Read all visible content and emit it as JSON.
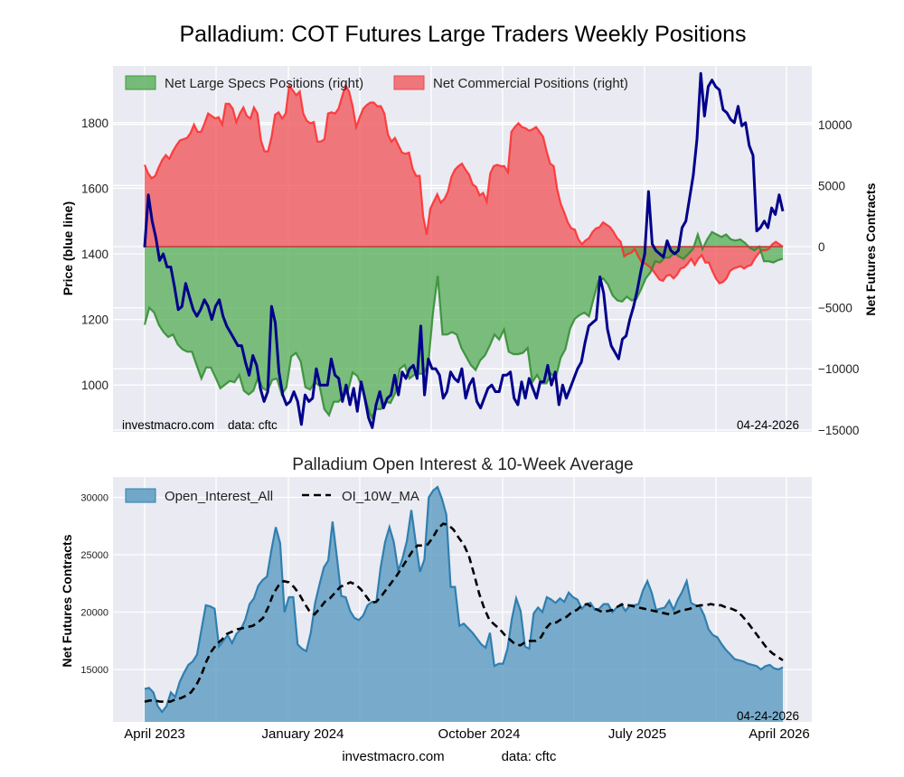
{
  "chart_data": [
    {
      "type": "area",
      "title": "Palladium: COT Futures Large Traders Weekly Positions",
      "ylabel_left": "Price (blue line)",
      "ylabel_right": "Net Futures Contracts",
      "ylim_left": [
        870,
        1970
      ],
      "ylim_right": [
        -15000,
        14500
      ],
      "yticks_left": [
        "1000",
        "1200",
        "1400",
        "1600",
        "1800"
      ],
      "yticks_left_values": [
        1000,
        1200,
        1400,
        1600,
        1800
      ],
      "yticks_right": [
        "−15000",
        "−10000",
        "−5000",
        "0",
        "5000",
        "10000"
      ],
      "yticks_right_values": [
        -15000,
        -10000,
        -5000,
        0,
        5000,
        10000
      ],
      "grid": true,
      "legend_position": "top-left",
      "annotation_left": "investmacro.com    data: cftc",
      "annotation_right": "04-24-2026",
      "x_start": "April 2023",
      "x_end": "April 2026",
      "series": [
        {
          "name": "Net Large Specs Positions (right)",
          "axis": "right",
          "color": "#2e8b2e",
          "values": [
            -6400,
            -5000,
            -5400,
            -6400,
            -7000,
            -7400,
            -7200,
            -8000,
            -8400,
            -8600,
            -8600,
            -9700,
            -10800,
            -9900,
            -9900,
            -10700,
            -11600,
            -11300,
            -11000,
            -11100,
            -10500,
            -11800,
            -12100,
            -11800,
            -10700,
            -11600,
            -11800,
            -10900,
            -10800,
            -12100,
            -11500,
            -9000,
            -8700,
            -9400,
            -11500,
            -11700,
            -11100,
            -11400,
            -13300,
            -13800,
            -12700,
            -12700,
            -12300,
            -11800,
            -10300,
            -10600,
            -11500,
            -12900,
            -14000,
            -13300,
            -13300,
            -12700,
            -12800,
            -12000,
            -10000,
            -9700,
            -10800,
            -10500,
            -10400,
            -10400,
            -9600,
            -5400,
            -2400,
            -7200,
            -7200,
            -7000,
            -7200,
            -8300,
            -9000,
            -9700,
            -10100,
            -9300,
            -8900,
            -8100,
            -7200,
            -7600,
            -6800,
            -8600,
            -8800,
            -8800,
            -8700,
            -8300,
            -11100,
            -10500,
            -11200,
            -11200,
            -10400,
            -10700,
            -9100,
            -8400,
            -6700,
            -5900,
            -5600,
            -5400,
            -5700,
            -4200,
            -2800,
            -2600,
            -3100,
            -4000,
            -4400,
            -4500,
            -4100,
            -4400,
            -4300,
            -3500,
            -2600,
            -2100,
            -1200,
            -1300,
            -900,
            -900,
            -500,
            -800,
            -1000,
            -600,
            -200,
            1000,
            -200,
            600,
            1200,
            1000,
            800,
            1000,
            600,
            500,
            600,
            300,
            -100,
            -300,
            0,
            -1200,
            -1200,
            -1300,
            -1100,
            -1000
          ]
        },
        {
          "name": "Net Commercial Positions (right)",
          "axis": "right",
          "color": "#e8262b",
          "values": [
            6700,
            6000,
            5600,
            5800,
            6500,
            7100,
            7500,
            7200,
            7800,
            8300,
            8700,
            8800,
            8900,
            9300,
            10000,
            9400,
            9400,
            10100,
            10900,
            10700,
            10500,
            10600,
            10000,
            11700,
            11700,
            11300,
            10200,
            10900,
            11400,
            10700,
            10500,
            11400,
            10900,
            8700,
            7800,
            7800,
            9000,
            10800,
            11000,
            10500,
            10900,
            13200,
            12800,
            12400,
            12700,
            10900,
            10300,
            10100,
            10200,
            8600,
            8600,
            8800,
            10900,
            11000,
            10900,
            11300,
            12300,
            13200,
            12700,
            11500,
            9800,
            10600,
            11300,
            11600,
            11800,
            11800,
            11500,
            11500,
            10900,
            9200,
            8600,
            8900,
            8300,
            7700,
            7600,
            7700,
            6400,
            5800,
            5800,
            2500,
            1000,
            3100,
            3700,
            4300,
            3600,
            3900,
            4500,
            5700,
            6300,
            6600,
            6800,
            6300,
            5900,
            5100,
            4900,
            4200,
            4400,
            3700,
            6000,
            6600,
            6700,
            6600,
            6600,
            6100,
            9400,
            9800,
            10100,
            9800,
            9700,
            9500,
            9600,
            9800,
            9400,
            9000,
            7800,
            6800,
            6600,
            4700,
            3500,
            2800,
            2000,
            1500,
            1400,
            600,
            200,
            500,
            700,
            1200,
            1500,
            1600,
            2000,
            1800,
            1600,
            1200,
            700,
            400,
            -800,
            -600,
            -500,
            -200,
            -800,
            -1300,
            -1400,
            -1600,
            -1900,
            -2300,
            -2700,
            -2800,
            -2400,
            -2300,
            -2600,
            -2300,
            -1800,
            -1700,
            -1400,
            -1000,
            -1500,
            -1000,
            -700,
            -1300,
            -1300,
            -2000,
            -2600,
            -3000,
            -2900,
            -2600,
            -2000,
            -1800,
            -1700,
            -1600,
            -1800,
            -1600,
            -1500,
            -1000,
            -600,
            -300,
            -300,
            -200,
            200,
            400,
            200,
            0
          ]
        },
        {
          "name": "Price (blue line)",
          "axis": "left",
          "color": "#00008b",
          "values": [
            1420,
            1580,
            1500,
            1450,
            1380,
            1400,
            1360,
            1360,
            1300,
            1230,
            1240,
            1310,
            1270,
            1230,
            1210,
            1230,
            1260,
            1240,
            1200,
            1240,
            1260,
            1210,
            1180,
            1160,
            1140,
            1120,
            1120,
            1070,
            1030,
            1090,
            1060,
            990,
            950,
            980,
            1240,
            1190,
            1040,
            970,
            940,
            950,
            980,
            950,
            880,
            970,
            950,
            960,
            1050,
            1000,
            1000,
            1000,
            1080,
            1030,
            1020,
            950,
            1000,
            940,
            990,
            920,
            1010,
            960,
            900,
            870,
            940,
            980,
            930,
            960,
            970,
            1030,
            970,
            1040,
            1020,
            1050,
            1060,
            1020,
            1180,
            970,
            1080,
            1050,
            1050,
            1030,
            960,
            980,
            1040,
            1020,
            1010,
            1050,
            960,
            1000,
            1020,
            950,
            930,
            960,
            990,
            1000,
            980,
            980,
            1030,
            1030,
            1040,
            960,
            940,
            1010,
            960,
            1020,
            990,
            960,
            1010,
            1010,
            1060,
            1000,
            1040,
            940,
            1000,
            960,
            990,
            1020,
            1050,
            1070,
            1130,
            1180,
            1190,
            1200,
            1330,
            1280,
            1170,
            1120,
            1100,
            1080,
            1140,
            1150,
            1200,
            1240,
            1290,
            1350,
            1400,
            1590,
            1430,
            1410,
            1400,
            1390,
            1440,
            1410,
            1400,
            1410,
            1480,
            1500,
            1570,
            1640,
            1750,
            1950,
            1820,
            1910,
            1930,
            1910,
            1900,
            1840,
            1830,
            1810,
            1800,
            1850,
            1790,
            1800,
            1730,
            1700,
            1470,
            1480,
            1500,
            1480,
            1540,
            1520,
            1580,
            1530
          ]
        }
      ]
    },
    {
      "type": "area",
      "title": "Palladium Open Interest & 10-Week Average",
      "ylabel": "Net Futures Contracts",
      "ylim": [
        10500,
        31700
      ],
      "yticks": [
        "15000",
        "20000",
        "25000",
        "30000"
      ],
      "yticks_values": [
        15000,
        20000,
        25000,
        30000
      ],
      "xticks": [
        "April 2023",
        "January 2024",
        "October 2024",
        "July 2025",
        "April 2026"
      ],
      "grid": true,
      "legend_position": "top-left",
      "annotation_right": "04-24-2026",
      "series": [
        {
          "name": "Open_Interest_All",
          "color": "#4a8db5",
          "values": [
            13300,
            13400,
            13000,
            11800,
            11300,
            11800,
            13000,
            12600,
            13900,
            14700,
            15400,
            15700,
            16300,
            18500,
            20600,
            20500,
            20300,
            17000,
            17500,
            18000,
            17300,
            18100,
            18500,
            19300,
            20700,
            21200,
            22300,
            22800,
            23100,
            25400,
            27400,
            26000,
            20000,
            21300,
            21300,
            17200,
            16800,
            16600,
            18200,
            20800,
            22400,
            23900,
            24500,
            27900,
            24700,
            21400,
            21300,
            20100,
            19500,
            19300,
            19700,
            20600,
            20900,
            20900,
            23900,
            26100,
            27400,
            26100,
            23600,
            24700,
            26200,
            28900,
            26100,
            23500,
            24600,
            30000,
            30600,
            30900,
            29900,
            28500,
            22200,
            22200,
            18800,
            19000,
            18600,
            18200,
            17700,
            17200,
            16900,
            18200,
            15300,
            15500,
            15500,
            16800,
            19400,
            21200,
            20100,
            17000,
            16800,
            19900,
            20400,
            20000,
            21300,
            21100,
            20800,
            21200,
            20900,
            21700,
            21300,
            21100,
            20300,
            20700,
            20800,
            20200,
            20300,
            20700,
            20700,
            20000,
            20400,
            20700,
            20100,
            20600,
            20600,
            20700,
            21900,
            22700,
            21700,
            20200,
            20300,
            20400,
            21000,
            20200,
            21100,
            21800,
            22700,
            20800,
            20600,
            20500,
            19700,
            18500,
            18000,
            17800,
            17200,
            16700,
            16300,
            15900,
            15800,
            15700,
            15500,
            15400,
            15300,
            15000,
            15300,
            15400,
            15100,
            15000,
            15200
          ]
        },
        {
          "name": "OI_10W_MA",
          "color": "#000000",
          "dashed": true,
          "values": [
            12200,
            12300,
            12300,
            12200,
            12200,
            12200,
            12400,
            12500,
            12700,
            13000,
            13600,
            14500,
            15700,
            16600,
            17200,
            17600,
            18100,
            18300,
            18500,
            18600,
            18700,
            18800,
            19100,
            19500,
            20400,
            21600,
            22300,
            22700,
            22600,
            22200,
            21600,
            20800,
            20100,
            19800,
            20300,
            20900,
            21200,
            21700,
            22200,
            22400,
            22600,
            22400,
            22000,
            21400,
            20800,
            20900,
            21400,
            22000,
            22600,
            23200,
            23900,
            24600,
            25300,
            25800,
            25800,
            25900,
            26500,
            27300,
            27700,
            27600,
            27200,
            26500,
            25900,
            24900,
            23300,
            21600,
            20300,
            19300,
            18900,
            18500,
            18000,
            17600,
            17200,
            17100,
            17400,
            17500,
            17500,
            17800,
            18600,
            19100,
            19100,
            19400,
            19600,
            20000,
            20200,
            20600,
            20700,
            20400,
            20200,
            20000,
            20100,
            20200,
            20500,
            20700,
            20600,
            20500,
            20400,
            20300,
            20200,
            20100,
            20000,
            19900,
            19800,
            19900,
            20100,
            20200,
            20300,
            20500,
            20600,
            20600,
            20700,
            20600,
            20600,
            20400,
            20300,
            20100,
            19700,
            19200,
            18600,
            18000,
            17400,
            16800,
            16400,
            16100,
            15800
          ]
        }
      ]
    }
  ],
  "footer": {
    "site": "investmacro.com",
    "source": "data: cftc"
  },
  "colors": {
    "plot_bg": "#eaeaf2",
    "grid": "#ffffff",
    "specs_fill": "#4daa4d",
    "comm_fill": "#f05a5e",
    "price_line": "#00008b",
    "oi_fill": "#5b9bc0",
    "oi_line": "#2f7fb0"
  }
}
